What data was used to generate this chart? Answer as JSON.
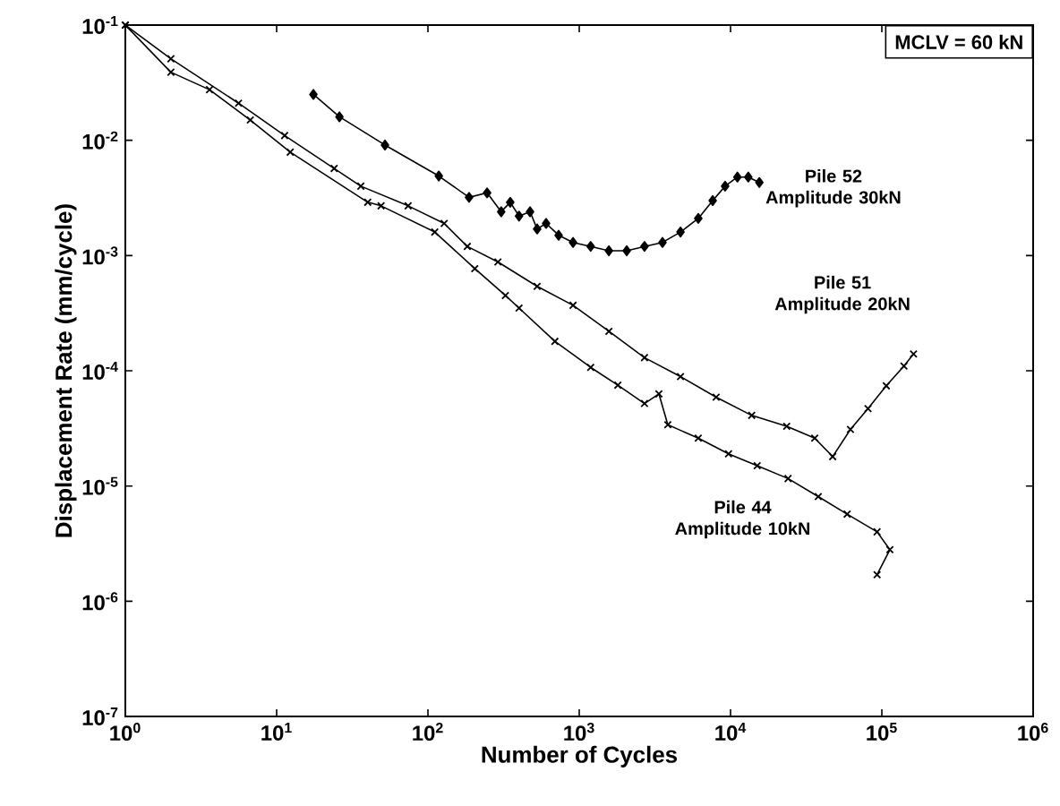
{
  "chart_data": {
    "type": "line",
    "xlabel": "Number of Cycles",
    "ylabel": "Displacement Rate (mm/cycle)",
    "annotations": [
      "MCLV = 60 kN"
    ],
    "log": "xy",
    "grid": false,
    "legend": false,
    "xlim": [
      1,
      1000000
    ],
    "ylim": [
      1e-07,
      0.1
    ],
    "xticks": [
      {
        "value": 1,
        "label": "10$^{0}$"
      },
      {
        "value": 10,
        "label": "10$^{1}$"
      },
      {
        "value": 100,
        "label": "10$^{2}$"
      },
      {
        "value": 1000,
        "label": "10$^{3}$"
      },
      {
        "value": 10000,
        "label": "10$^{4}$"
      },
      {
        "value": 100000,
        "label": "10$^{5}$"
      },
      {
        "value": 1000000,
        "label": "10$^{6}$"
      }
    ],
    "yticks": [
      {
        "value": 1e-07,
        "label": "10$^{-7}$"
      },
      {
        "value": 1e-06,
        "label": "10$^{-6}$"
      },
      {
        "value": 1e-05,
        "label": "10$^{-5}$"
      },
      {
        "value": 0.0001,
        "label": "10$^{-4}$"
      },
      {
        "value": 0.001,
        "label": "10$^{-3}$"
      },
      {
        "value": 0.01,
        "label": "10$^{-2}$"
      },
      {
        "value": 0.1,
        "label": "10$^{-1}$"
      }
    ],
    "series": [
      {
        "name": "Pile 52 Amplitude 30kN",
        "color": "#000000",
        "marker": "diamond",
        "x": [
          17.5,
          26,
          52,
          118,
          187,
          246,
          305,
          350,
          400,
          473,
          527,
          604,
          731,
          910,
          1190,
          1570,
          2060,
          2700,
          3550,
          4670,
          6120,
          7620,
          9210,
          11100,
          13100,
          15500
        ],
        "values": [
          0.025,
          0.016,
          0.0091,
          0.0049,
          0.0032,
          0.0035,
          0.0024,
          0.0029,
          0.0022,
          0.0024,
          0.0017,
          0.0019,
          0.0015,
          0.0013,
          0.0012,
          0.0011,
          0.0011,
          0.0012,
          0.0013,
          0.0016,
          0.0021,
          0.003,
          0.004,
          0.0048,
          0.0048,
          0.0043
        ]
      },
      {
        "name": "Pile 51 Amplitude 20kN",
        "color": "#000000",
        "marker": "cross",
        "x": [
          1,
          2,
          5.6,
          11.3,
          24,
          36,
          74,
          128,
          182,
          290,
          527,
          910,
          1570,
          2700,
          4670,
          8030,
          13800,
          23500,
          36000,
          47300,
          62000,
          81000,
          107000,
          140000,
          162000
        ],
        "values": [
          0.1,
          0.051,
          0.021,
          0.011,
          0.0057,
          0.004,
          0.0027,
          0.0019,
          0.0012,
          0.00088,
          0.00054,
          0.00037,
          0.00022,
          0.00013,
          8.9e-05,
          5.9e-05,
          4.1e-05,
          3.3e-05,
          2.6e-05,
          1.8e-05,
          3.1e-05,
          4.7e-05,
          7.4e-05,
          0.00011,
          0.00014
        ]
      },
      {
        "name": "Pile 44 Amplitude 10kN",
        "color": "#000000",
        "marker": "cross",
        "x": [
          1,
          2,
          3.6,
          6.7,
          12.3,
          40,
          49,
          111,
          204,
          325,
          400,
          690,
          1190,
          1800,
          2700,
          3360,
          3850,
          6120,
          9700,
          15000,
          24000,
          38000,
          59000,
          93000,
          113000,
          93000
        ],
        "values": [
          0.1,
          0.039,
          0.0275,
          0.015,
          0.0079,
          0.0029,
          0.0027,
          0.0016,
          0.00077,
          0.00045,
          0.00035,
          0.00018,
          0.000107,
          7.5e-05,
          5.2e-05,
          6.3e-05,
          3.4e-05,
          2.6e-05,
          1.9e-05,
          1.5e-05,
          1.16e-05,
          8.1e-06,
          5.7e-06,
          4e-06,
          2.8e-06,
          1.7e-06
        ]
      }
    ]
  }
}
